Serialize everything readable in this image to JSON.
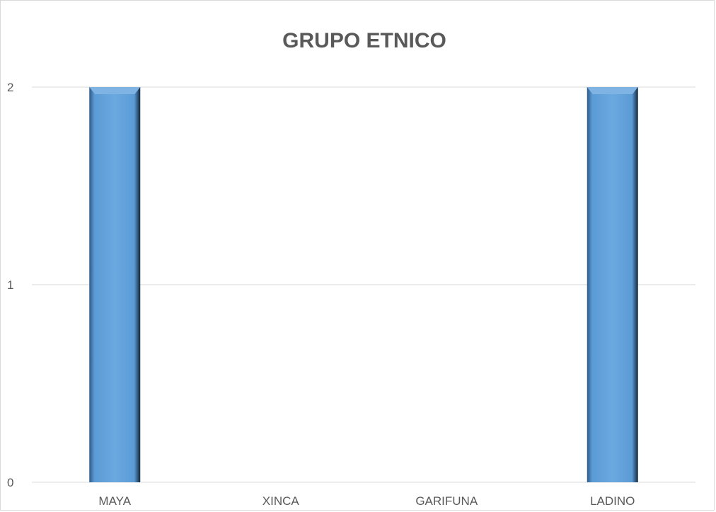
{
  "chart_data": {
    "type": "bar",
    "title": "GRUPO ETNICO",
    "categories": [
      "MAYA",
      "XINCA",
      "GARIFUNA",
      "LADINO"
    ],
    "values": [
      2,
      0,
      0,
      2
    ],
    "ylim": [
      0,
      2
    ],
    "yticks": [
      "0",
      "1",
      "2"
    ],
    "grid": true,
    "legend": "none",
    "colors": {
      "bar": "#5b9bd5",
      "bar_light": "#7fb3e3",
      "bar_dark": "#1f3f5f",
      "grid": "#d9d9d9",
      "text": "#595959"
    }
  }
}
